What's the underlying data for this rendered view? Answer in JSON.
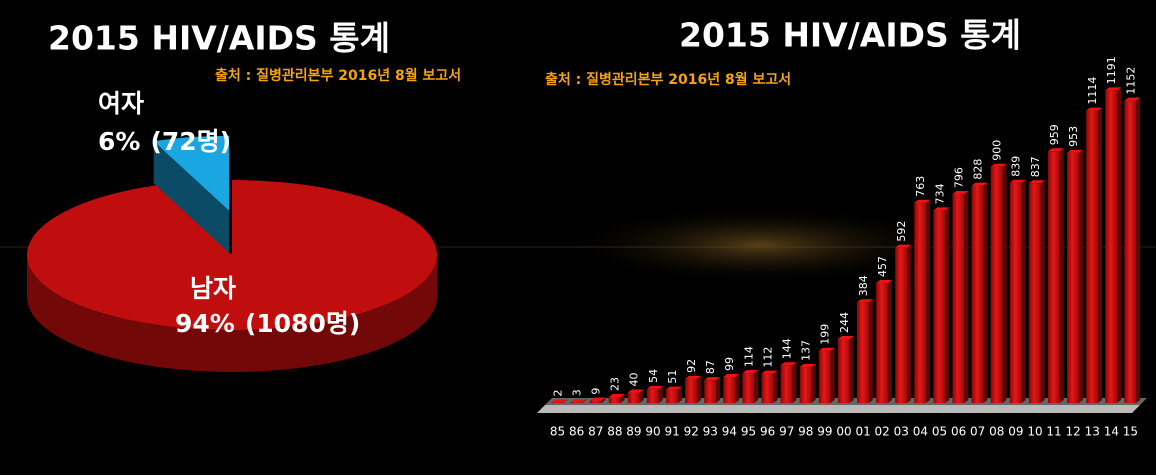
{
  "chart_data": [
    {
      "type": "pie",
      "title": "2015 HIV/AIDS 통계",
      "source": "출처 : 질병관리본부 2016년 8월 보고서",
      "categories": [
        "남자",
        "여자"
      ],
      "values": [
        94,
        6
      ],
      "value_labels": [
        "94%",
        "6%"
      ],
      "count_labels": [
        "(1080명)",
        "(72명)"
      ],
      "colors": [
        "#c00d0d",
        "#1aa6e0"
      ],
      "explode": [
        0,
        0.25
      ]
    },
    {
      "type": "bar",
      "title": "2015 HIV/AIDS 통계",
      "source": "출처 : 질병관리본부 2016년 8월 보고서",
      "categories": [
        "85",
        "86",
        "87",
        "88",
        "89",
        "90",
        "91",
        "92",
        "93",
        "94",
        "95",
        "96",
        "97",
        "98",
        "99",
        "00",
        "01",
        "02",
        "03",
        "04",
        "05",
        "06",
        "07",
        "08",
        "09",
        "10",
        "11",
        "12",
        "13",
        "14",
        "15"
      ],
      "values": [
        2,
        3,
        9,
        23,
        40,
        54,
        51,
        92,
        87,
        99,
        114,
        112,
        144,
        137,
        199,
        244,
        384,
        457,
        592,
        763,
        734,
        796,
        828,
        900,
        839,
        837,
        959,
        953,
        1114,
        1191,
        1152
      ],
      "color": "#d01010",
      "ylim": [
        0,
        1200
      ]
    }
  ]
}
